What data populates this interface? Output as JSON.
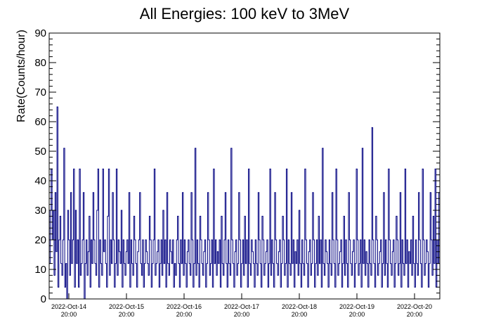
{
  "chart_data": {
    "type": "line",
    "title": "All Energies:  100 keV to 3MeV",
    "xlabel": "",
    "ylabel": "Rate(Counts/hour)",
    "ylim": [
      0,
      90
    ],
    "yticks": [
      "0",
      "10",
      "20",
      "30",
      "40",
      "50",
      "60",
      "70",
      "80",
      "90"
    ],
    "xticks": [
      {
        "date": "2022-Oct-14",
        "time": "20:00"
      },
      {
        "date": "2022-Oct-15",
        "time": "20:00"
      },
      {
        "date": "2022-Oct-16",
        "time": "20:00"
      },
      {
        "date": "2022-Oct-17",
        "time": "20:00"
      },
      {
        "date": "2022-Oct-18",
        "time": "20:00"
      },
      {
        "date": "2022-Oct-19",
        "time": "20:00"
      },
      {
        "date": "2022-Oct-20",
        "time": "20:00"
      }
    ],
    "x_unit": "time (bins)",
    "grid": false,
    "legend": "none",
    "series_color": "#000080",
    "series": [
      {
        "values": [
          12,
          30,
          44,
          20,
          30,
          8,
          36,
          16,
          65,
          4,
          20,
          28,
          12,
          8,
          20,
          51,
          4,
          12,
          0,
          30,
          20,
          8,
          36,
          12,
          20,
          44,
          4,
          30,
          12,
          20,
          4,
          44,
          8,
          12,
          20,
          36,
          0,
          12,
          20,
          8,
          16,
          28,
          4,
          20,
          12,
          36,
          20,
          12,
          8,
          30,
          44,
          4,
          20,
          12,
          8,
          44,
          16,
          20,
          12,
          4,
          28,
          44,
          8,
          20,
          12,
          36,
          20,
          4,
          12,
          44,
          8,
          20,
          16,
          12,
          30,
          4,
          20,
          12,
          8,
          16,
          20,
          12,
          36,
          4,
          20,
          12,
          8,
          28,
          20,
          12,
          4,
          16,
          20,
          36,
          12,
          8,
          20,
          4,
          12,
          20,
          16,
          12,
          8,
          28,
          20,
          4,
          12,
          20,
          44,
          8,
          12,
          16,
          20,
          4,
          12,
          20,
          8,
          30,
          12,
          20,
          4,
          36,
          12,
          8,
          20,
          16,
          12,
          20,
          4,
          12,
          8,
          20,
          28,
          12,
          4,
          20,
          12,
          36,
          8,
          20,
          12,
          4,
          16,
          20,
          12,
          8,
          36,
          20,
          4,
          12,
          51,
          8,
          20,
          12,
          4,
          28,
          20,
          12,
          8,
          16,
          20,
          4,
          12,
          36,
          20,
          8,
          12,
          20,
          4,
          44,
          12,
          20,
          8,
          16,
          12,
          20,
          4,
          28,
          12,
          8,
          20,
          36,
          12,
          4,
          20,
          12,
          8,
          51,
          20,
          12,
          4,
          16,
          20,
          8,
          12,
          36,
          20,
          4,
          12,
          20,
          8,
          28,
          12,
          20,
          4,
          44,
          12,
          8,
          20,
          16,
          12,
          4,
          20,
          12,
          8,
          36,
          20,
          12,
          4,
          28,
          20,
          8,
          12,
          16,
          20,
          4,
          12,
          44,
          8,
          20,
          12,
          4,
          36,
          20,
          12,
          8,
          16,
          20,
          4,
          12,
          28,
          20,
          8,
          12,
          44,
          4,
          20,
          12,
          8,
          36,
          12,
          20,
          4,
          16,
          12,
          20,
          8,
          30,
          12,
          4,
          20,
          12,
          8,
          44,
          20,
          12,
          4,
          16,
          20,
          8,
          12,
          36,
          20,
          4,
          12,
          20,
          8,
          28,
          12,
          20,
          4,
          51,
          12,
          8,
          20,
          16,
          12,
          4,
          20,
          12,
          8,
          36,
          20,
          12,
          4,
          44,
          20,
          8,
          12,
          16,
          20,
          4,
          12,
          28,
          8,
          20,
          12,
          4,
          36,
          20,
          12,
          8,
          16,
          20,
          4,
          12,
          44,
          20,
          8,
          12,
          20,
          4,
          51,
          12,
          20,
          8,
          16,
          12,
          4,
          20,
          12,
          8,
          58,
          20,
          12,
          4,
          28,
          20,
          8,
          12,
          16,
          20,
          4,
          12,
          36,
          8,
          20,
          12,
          4,
          44,
          20,
          12,
          8,
          16,
          20,
          4,
          12,
          28,
          20,
          8,
          12,
          36,
          4,
          20,
          12,
          8,
          44,
          12,
          20,
          4,
          16,
          12,
          20,
          8,
          28,
          12,
          4,
          20,
          12,
          8,
          36,
          20,
          12,
          4,
          44,
          20,
          8,
          12,
          20,
          16,
          4,
          12,
          36,
          20,
          8,
          28,
          12,
          44,
          4,
          20,
          12,
          36
        ]
      }
    ]
  }
}
